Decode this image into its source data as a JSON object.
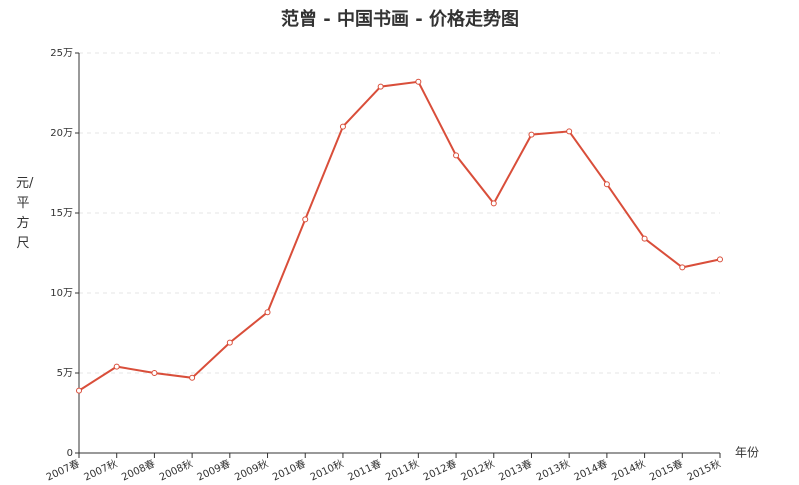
{
  "chart_data": {
    "type": "line",
    "title": "范曾 - 中国书画 - 价格走势图",
    "y_label": "元/平方尺",
    "x_label": "年份",
    "categories": [
      "2007春",
      "2007秋",
      "2008春",
      "2008秋",
      "2009春",
      "2009秋",
      "2010春",
      "2010秋",
      "2011春",
      "2011秋",
      "2012春",
      "2012秋",
      "2013春",
      "2013秋",
      "2014春",
      "2014秋",
      "2015春",
      "2015秋"
    ],
    "series": [
      {
        "name": "价格",
        "color": "#d94e3a",
        "values": [
          3.9,
          5.4,
          5.0,
          4.7,
          6.9,
          8.8,
          14.6,
          20.4,
          22.9,
          23.2,
          18.6,
          15.6,
          19.9,
          20.1,
          16.8,
          13.4,
          11.6,
          12.1
        ]
      }
    ],
    "ylim": [
      0,
      25
    ],
    "yticks": [
      0,
      {
        "value": 5,
        "label": "5万"
      },
      {
        "value": 10,
        "label": "10万"
      },
      {
        "value": 15,
        "label": "15万"
      },
      {
        "value": 20,
        "label": "20万"
      },
      {
        "value": 25,
        "label": "25万"
      }
    ],
    "grid": true
  }
}
